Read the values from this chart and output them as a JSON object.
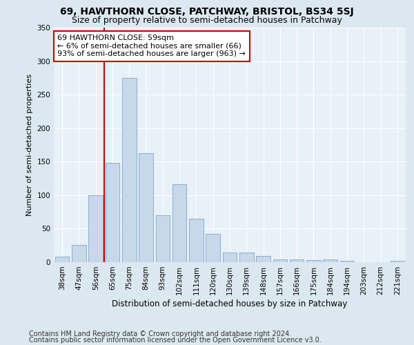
{
  "title": "69, HAWTHORN CLOSE, PATCHWAY, BRISTOL, BS34 5SJ",
  "subtitle": "Size of property relative to semi-detached houses in Patchway",
  "xlabel": "Distribution of semi-detached houses by size in Patchway",
  "ylabel": "Number of semi-detached properties",
  "categories": [
    "38sqm",
    "47sqm",
    "56sqm",
    "65sqm",
    "75sqm",
    "84sqm",
    "93sqm",
    "102sqm",
    "111sqm",
    "120sqm",
    "130sqm",
    "139sqm",
    "148sqm",
    "157sqm",
    "166sqm",
    "175sqm",
    "184sqm",
    "194sqm",
    "203sqm",
    "212sqm",
    "221sqm"
  ],
  "values": [
    8,
    26,
    100,
    148,
    275,
    163,
    70,
    116,
    65,
    42,
    14,
    14,
    9,
    4,
    4,
    3,
    4,
    2,
    0,
    0,
    2
  ],
  "bar_color": "#c8d8ea",
  "bar_edge_color": "#7aa8c8",
  "vline_color": "#cc0000",
  "annotation_text": "69 HAWTHORN CLOSE: 59sqm\n← 6% of semi-detached houses are smaller (66)\n93% of semi-detached houses are larger (963) →",
  "annotation_box_color": "#ffffff",
  "annotation_box_edge": "#cc0000",
  "ylim": [
    0,
    350
  ],
  "yticks": [
    0,
    50,
    100,
    150,
    200,
    250,
    300,
    350
  ],
  "footer1": "Contains HM Land Registry data © Crown copyright and database right 2024.",
  "footer2": "Contains public sector information licensed under the Open Government Licence v3.0.",
  "background_color": "#dce8f0",
  "plot_background": "#e8f0f8",
  "title_fontsize": 10,
  "subtitle_fontsize": 9,
  "ylabel_fontsize": 8,
  "xlabel_fontsize": 8.5,
  "tick_fontsize": 7.5,
  "footer_fontsize": 7,
  "ann_fontsize": 8
}
